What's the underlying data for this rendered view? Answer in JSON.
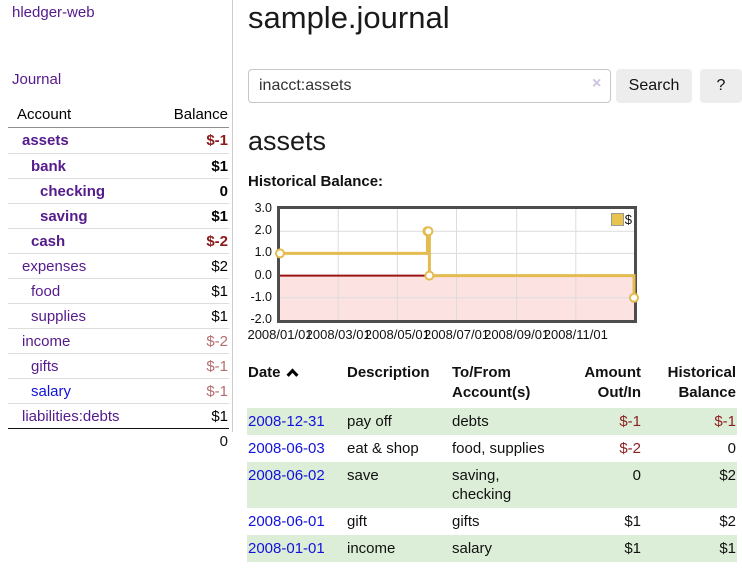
{
  "app": {
    "title": "hledger-web"
  },
  "sidebar": {
    "journal_link": "Journal",
    "header": {
      "account": "Account",
      "balance": "Balance"
    },
    "accounts": [
      {
        "name": "assets",
        "balance": "$-1"
      },
      {
        "name": "bank",
        "balance": "$1"
      },
      {
        "name": "checking",
        "balance": "0"
      },
      {
        "name": "saving",
        "balance": "$1"
      },
      {
        "name": "cash",
        "balance": "$-2"
      },
      {
        "name": "expenses",
        "balance": "$2"
      },
      {
        "name": "food",
        "balance": "$1"
      },
      {
        "name": "supplies",
        "balance": "$1"
      },
      {
        "name": "income",
        "balance": "$-2"
      },
      {
        "name": "gifts",
        "balance": "$-1"
      },
      {
        "name": "salary",
        "balance": "$-1"
      },
      {
        "name": "liabilities:debts",
        "balance": "$1"
      }
    ],
    "total": "0"
  },
  "main": {
    "title": "sample.journal",
    "search": {
      "value": "inacct:assets",
      "clear_icon": "×",
      "button": "Search",
      "help_button": "?"
    },
    "account_heading": "assets",
    "chart_label": "Historical Balance:"
  },
  "chart_data": {
    "type": "line",
    "title": "Historical Balance",
    "legend": [
      {
        "label": "$",
        "color": "#e8c34e"
      }
    ],
    "x_start": "2008-01-01",
    "x_end": "2008-12-31",
    "ylim": [
      -2,
      3
    ],
    "y_ticks": [
      {
        "value": 3,
        "label": "3.0"
      },
      {
        "value": 2,
        "label": "2.0"
      },
      {
        "value": 1,
        "label": "1.0"
      },
      {
        "value": 0,
        "label": "0.0"
      },
      {
        "value": -1,
        "label": "-1.0"
      },
      {
        "value": -2,
        "label": "-2.0"
      }
    ],
    "x_ticks": [
      {
        "date": "2008-01-01",
        "label": "2008/01/01"
      },
      {
        "date": "2008-03-01",
        "label": "2008/03/01"
      },
      {
        "date": "2008-05-01",
        "label": "2008/05/01"
      },
      {
        "date": "2008-07-01",
        "label": "2008/07/01"
      },
      {
        "date": "2008-09-01",
        "label": "2008/09/01"
      },
      {
        "date": "2008-11-01",
        "label": "2008/11/01"
      }
    ],
    "points": [
      {
        "date": "2008-01-01",
        "value": 1
      },
      {
        "date": "2008-06-01",
        "value": 2
      },
      {
        "date": "2008-06-02",
        "value": 2
      },
      {
        "date": "2008-06-03",
        "value": 0
      },
      {
        "date": "2008-12-31",
        "value": -1
      }
    ],
    "grid": true,
    "legend_position": "top-right",
    "line_color": "#e3bb4f",
    "negative_fill": "#fde2e2",
    "zero_line_color": "#9c1414",
    "gridline_color": "#dcdcdc"
  },
  "table": {
    "headers": {
      "date": "Date",
      "description": "Description",
      "account": "To/From Account(s)",
      "amount": "Amount Out/In",
      "balance": "Historical Balance"
    },
    "sort": {
      "column": "date",
      "direction": "ascending"
    },
    "rows": [
      {
        "date": "2008-12-31",
        "description": "pay off",
        "account": "debts",
        "amount": "$-1",
        "balance": "$-1"
      },
      {
        "date": "2008-06-03",
        "description": "eat & shop",
        "account": "food, supplies",
        "amount": "$-2",
        "balance": "0"
      },
      {
        "date": "2008-06-02",
        "description": "save",
        "account": "saving, checking",
        "amount": "0",
        "balance": "$2"
      },
      {
        "date": "2008-06-01",
        "description": "gift",
        "account": "gifts",
        "amount": "$1",
        "balance": "$2"
      },
      {
        "date": "2008-01-01",
        "description": "income",
        "account": "salary",
        "amount": "$1",
        "balance": "$1"
      }
    ]
  },
  "colors": {
    "link_visited_purple": "#551a8b",
    "link_blue": "#1212dd",
    "negative_strong": "#8b1a1a",
    "negative_soft": "#b56d6d",
    "table_negative": "#8b2121",
    "row_stripe_green": "#ddeed8",
    "accent_gold": "#e3bb4f"
  }
}
